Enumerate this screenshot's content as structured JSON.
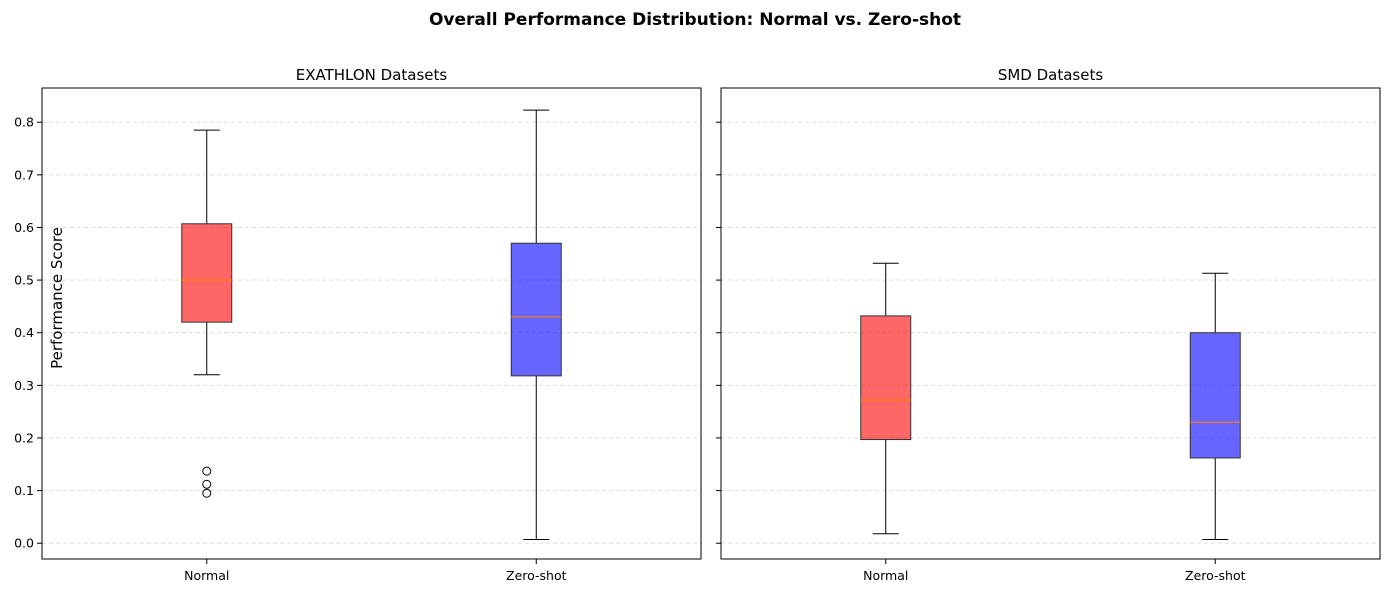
{
  "figure": {
    "title": "Overall Performance Distribution: Normal vs. Zero-shot"
  },
  "chart_data": [
    {
      "type": "box",
      "title": "EXATHLON Datasets",
      "xlabel": "",
      "ylabel": "Performance Score",
      "categories": [
        "Normal",
        "Zero-shot"
      ],
      "ylim": [
        -0.03,
        0.865
      ],
      "yticks": [
        "0.0",
        "0.1",
        "0.2",
        "0.3",
        "0.4",
        "0.5",
        "0.6",
        "0.7",
        "0.8"
      ],
      "grid": "y-dashed",
      "boxes": [
        {
          "category": "Normal",
          "whisker_low": 0.32,
          "q1": 0.42,
          "median": 0.5,
          "q3": 0.607,
          "whisker_high": 0.785,
          "outliers": [
            0.137,
            0.112,
            0.095
          ],
          "color": "#ff0000"
        },
        {
          "category": "Zero-shot",
          "whisker_low": 0.007,
          "q1": 0.318,
          "median": 0.43,
          "q3": 0.57,
          "whisker_high": 0.823,
          "outliers": [],
          "color": "#0000ff"
        }
      ]
    },
    {
      "type": "box",
      "title": "SMD Datasets",
      "xlabel": "",
      "ylabel": "",
      "categories": [
        "Normal",
        "Zero-shot"
      ],
      "ylim": [
        -0.03,
        0.865
      ],
      "yticks": [],
      "grid": "y-dashed",
      "boxes": [
        {
          "category": "Normal",
          "whisker_low": 0.018,
          "q1": 0.197,
          "median": 0.272,
          "q3": 0.432,
          "whisker_high": 0.532,
          "outliers": [],
          "color": "#ff0000"
        },
        {
          "category": "Zero-shot",
          "whisker_low": 0.007,
          "q1": 0.162,
          "median": 0.23,
          "q3": 0.4,
          "whisker_high": 0.513,
          "outliers": [],
          "color": "#0000ff"
        }
      ]
    }
  ]
}
